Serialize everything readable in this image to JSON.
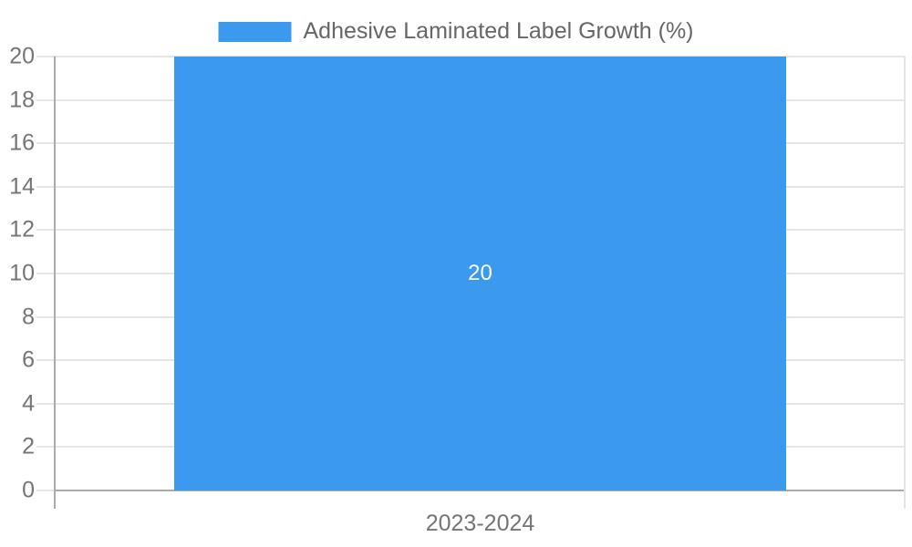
{
  "legend": {
    "label": "Adhesive Laminated Label Growth (%)"
  },
  "chart_data": {
    "type": "bar",
    "title": "Adhesive Laminated Label Growth (%)",
    "categories": [
      "2023-2024"
    ],
    "values": [
      20
    ],
    "bar_labels": [
      "20"
    ],
    "series": [
      {
        "name": "Adhesive Laminated Label Growth (%)",
        "values": [
          20
        ]
      }
    ],
    "xlabel": "",
    "ylabel": "",
    "ylim": [
      0,
      20
    ],
    "yticks": [
      0,
      2,
      4,
      6,
      8,
      10,
      12,
      14,
      16,
      18,
      20
    ],
    "grid": true,
    "legend_position": "top-center",
    "colors": {
      "bar": "#3B99EE",
      "grid": "#E6E6E6",
      "axis": "#ABABAB",
      "tick_label": "#757575",
      "legend_label": "#666666",
      "bar_label": "#FFFFFF"
    }
  }
}
